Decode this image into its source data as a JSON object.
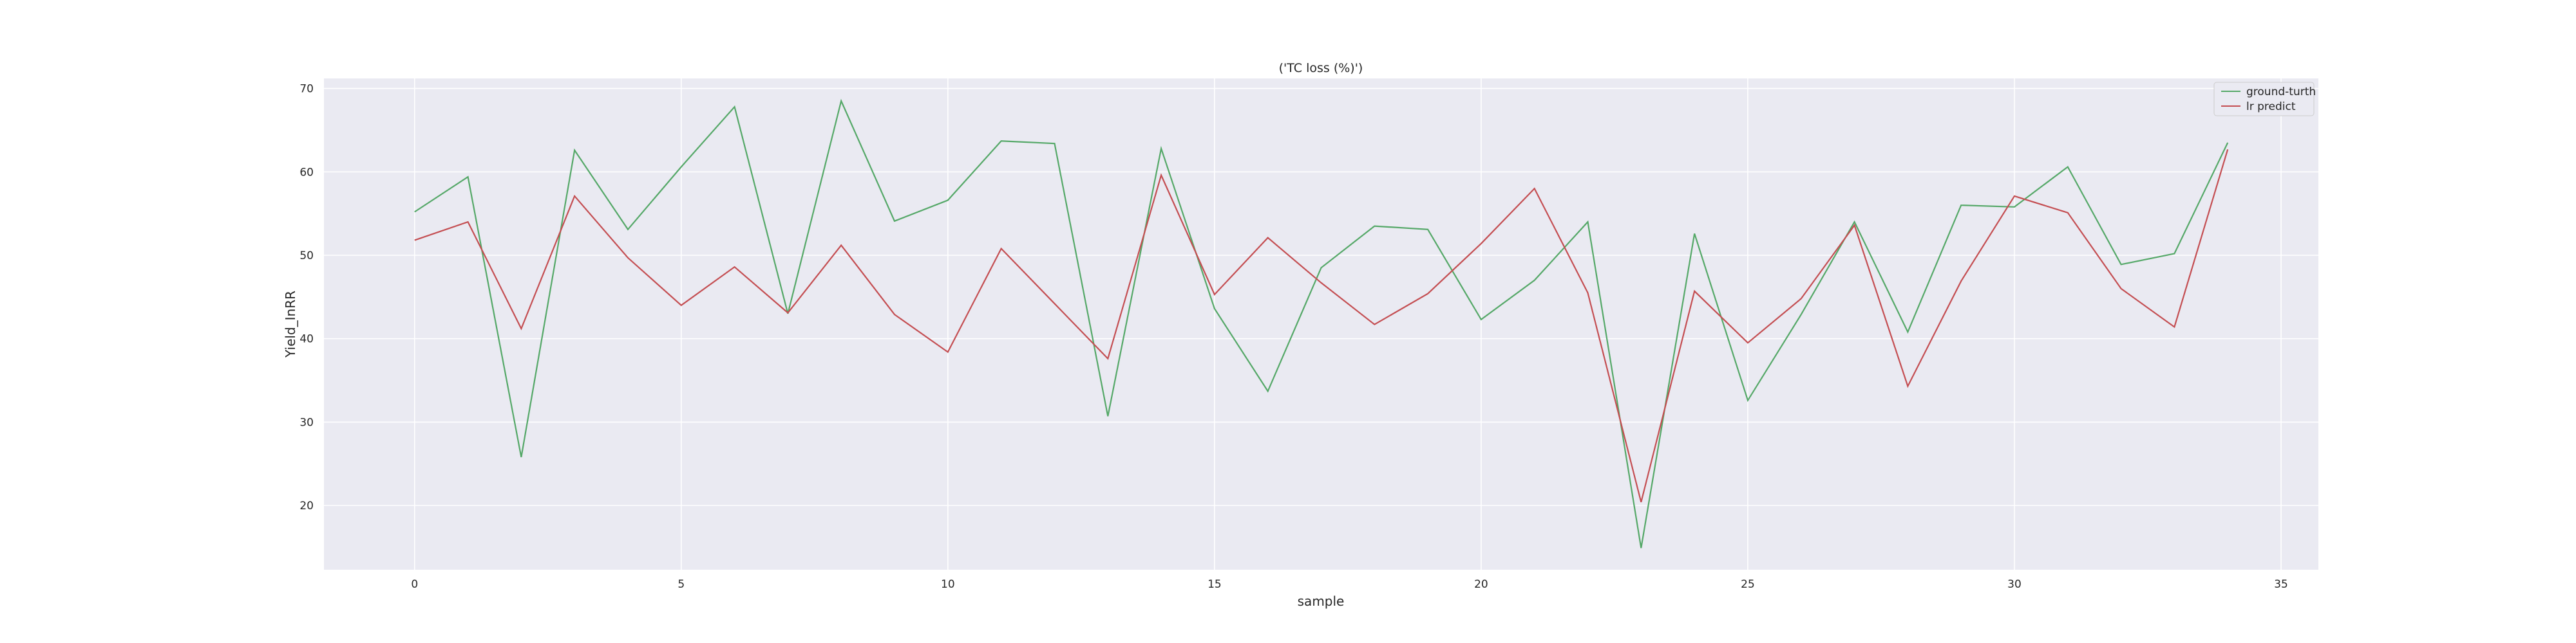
{
  "chart_data": {
    "type": "line",
    "title": "('TC loss (%)')",
    "xlabel": "sample",
    "ylabel": "Yield_InRR",
    "xlim": [
      -1.7,
      35.7
    ],
    "ylim": [
      12.3,
      71.2
    ],
    "xticks": [
      0,
      5,
      10,
      15,
      20,
      25,
      30,
      35
    ],
    "yticks": [
      20,
      30,
      40,
      50,
      60,
      70
    ],
    "grid": true,
    "legend_position": "top-right",
    "x": [
      0,
      1,
      2,
      3,
      4,
      5,
      6,
      7,
      8,
      9,
      10,
      11,
      12,
      13,
      14,
      15,
      16,
      17,
      18,
      19,
      20,
      21,
      22,
      23,
      24,
      25,
      26,
      27,
      28,
      29,
      30,
      31,
      32,
      33,
      34
    ],
    "series": [
      {
        "name": "ground-turth",
        "color": "#55a868",
        "values": [
          55.2,
          59.4,
          25.8,
          62.6,
          53.1,
          60.6,
          67.8,
          43.0,
          68.5,
          54.1,
          56.6,
          63.7,
          63.4,
          30.7,
          62.8,
          43.6,
          33.7,
          48.5,
          53.5,
          53.1,
          42.3,
          47.0,
          54.0,
          14.9,
          52.6,
          32.6,
          42.9,
          54.0,
          40.8,
          56.0,
          55.8,
          60.6,
          48.9,
          50.2,
          63.5
        ]
      },
      {
        "name": "lr predict",
        "color": "#c44e52",
        "values": [
          51.8,
          54.0,
          41.2,
          57.1,
          49.7,
          44.0,
          48.6,
          43.1,
          51.2,
          42.9,
          38.4,
          50.8,
          44.2,
          37.6,
          59.6,
          45.3,
          52.1,
          46.7,
          41.7,
          45.4,
          51.4,
          58.0,
          45.5,
          20.4,
          45.7,
          39.5,
          44.8,
          53.6,
          34.3,
          46.9,
          57.1,
          55.1,
          46.0,
          41.4,
          62.7
        ]
      }
    ]
  }
}
